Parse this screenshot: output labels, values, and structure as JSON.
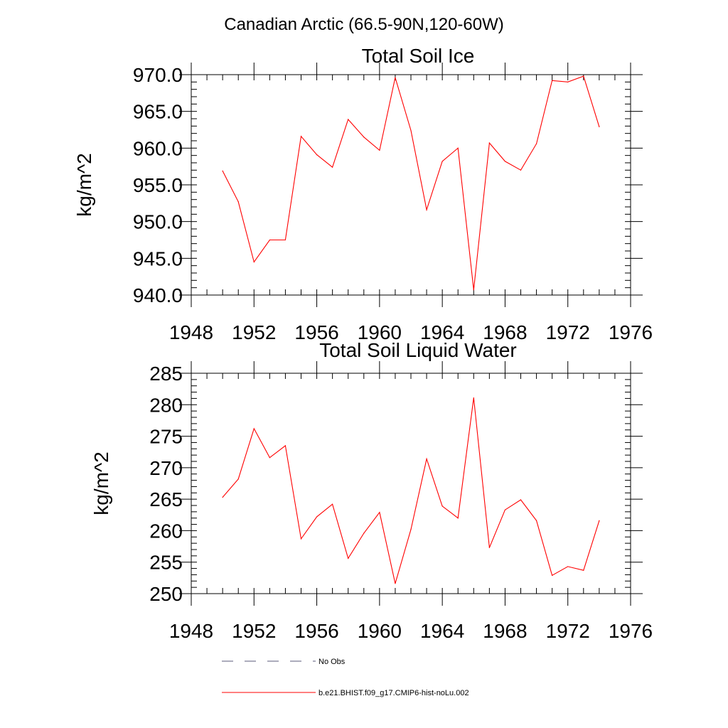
{
  "figure": {
    "title": "Canadian Arctic (66.5-90N,120-60W)"
  },
  "colors": {
    "model": "#ff0000",
    "obs": "#5a5a7a",
    "axis": "#000000"
  },
  "legend": {
    "placement": "bottom",
    "entries": [
      {
        "label": "No Obs",
        "style": "dashed",
        "color_key": "obs"
      },
      {
        "label": "b.e21.BHIST.f09_g17.CMIP6-hist-noLu.002",
        "style": "solid",
        "color_key": "model"
      }
    ]
  },
  "chart_data": [
    {
      "type": "line",
      "title": "Total Soil Ice",
      "xlabel": "",
      "ylabel": "kg/m^2",
      "xlim": [
        1948,
        1976
      ],
      "ylim": [
        940,
        970
      ],
      "xticks": [
        1948,
        1952,
        1956,
        1960,
        1964,
        1968,
        1972,
        1976
      ],
      "xtick_labels": [
        "1948",
        "1952",
        "1956",
        "1960",
        "1964",
        "1968",
        "1972",
        "1976"
      ],
      "yticks": [
        940,
        945,
        950,
        955,
        960,
        965,
        970
      ],
      "ytick_labels": [
        "940.0",
        "945.0",
        "950.0",
        "955.0",
        "960.0",
        "965.0",
        "970.0"
      ],
      "ymin_step": 1,
      "grid": false,
      "series": [
        {
          "name": "b.e21.BHIST.f09_g17.CMIP6-hist-noLu.002",
          "color_key": "model",
          "x": [
            1950,
            1951,
            1952,
            1953,
            1954,
            1955,
            1956,
            1957,
            1958,
            1959,
            1960,
            1961,
            1962,
            1963,
            1964,
            1965,
            1966,
            1967,
            1968,
            1969,
            1970,
            1971,
            1972,
            1973,
            1974
          ],
          "y": [
            956.9,
            952.7,
            944.5,
            947.5,
            947.5,
            961.6,
            959.1,
            957.4,
            963.9,
            961.5,
            959.7,
            969.6,
            962.4,
            951.6,
            958.2,
            960.0,
            940.7,
            960.7,
            958.2,
            957.0,
            960.6,
            969.2,
            969.0,
            969.8,
            962.9
          ]
        }
      ]
    },
    {
      "type": "line",
      "title": "Total Soil Liquid Water",
      "xlabel": "",
      "ylabel": "kg/m^2",
      "xlim": [
        1948,
        1976
      ],
      "ylim": [
        250,
        285
      ],
      "xticks": [
        1948,
        1952,
        1956,
        1960,
        1964,
        1968,
        1972,
        1976
      ],
      "xtick_labels": [
        "1948",
        "1952",
        "1956",
        "1960",
        "1964",
        "1968",
        "1972",
        "1976"
      ],
      "yticks": [
        250,
        255,
        260,
        265,
        270,
        275,
        280,
        285
      ],
      "ytick_labels": [
        "250",
        "255",
        "260",
        "265",
        "270",
        "275",
        "280",
        "285"
      ],
      "ymin_step": 1,
      "grid": false,
      "series": [
        {
          "name": "b.e21.BHIST.f09_g17.CMIP6-hist-noLu.002",
          "color_key": "model",
          "x": [
            1950,
            1951,
            1952,
            1953,
            1954,
            1955,
            1956,
            1957,
            1958,
            1959,
            1960,
            1961,
            1962,
            1963,
            1964,
            1965,
            1966,
            1967,
            1968,
            1969,
            1970,
            1971,
            1972,
            1973,
            1974
          ],
          "y": [
            265.3,
            268.2,
            276.2,
            271.6,
            273.5,
            258.7,
            262.2,
            264.2,
            255.6,
            259.6,
            262.9,
            251.6,
            260.2,
            271.4,
            263.9,
            262.0,
            281.1,
            257.3,
            263.3,
            264.9,
            261.6,
            252.9,
            254.3,
            253.7,
            261.6
          ]
        }
      ]
    }
  ]
}
